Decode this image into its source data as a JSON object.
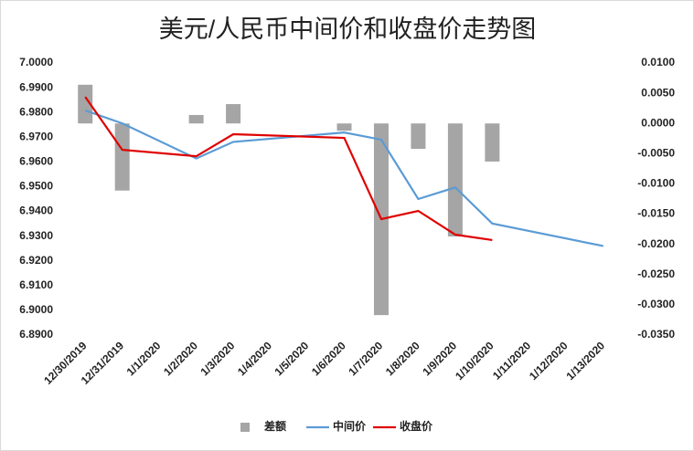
{
  "chart_data": {
    "type": "combo",
    "title": "美元/人民币中间价和收盘价走势图",
    "categories": [
      "12/30/2019",
      "12/31/2019",
      "1/1/2020",
      "1/2/2020",
      "1/3/2020",
      "1/4/2020",
      "1/5/2020",
      "1/6/2020",
      "1/7/2020",
      "1/8/2020",
      "1/9/2020",
      "1/10/2020",
      "1/11/2020",
      "1/12/2020",
      "1/13/2020"
    ],
    "series": [
      {
        "name": "差额",
        "type": "bar",
        "axis": "y2",
        "color": "#a5a5a5",
        "values": [
          0.0064,
          -0.0111,
          null,
          0.0014,
          0.0032,
          null,
          null,
          -0.0012,
          -0.0317,
          -0.0042,
          -0.0187,
          -0.0063,
          null,
          null,
          null
        ]
      },
      {
        "name": "中间价",
        "type": "line",
        "color": "#5b9bd5",
        "values": [
          6.9808,
          6.9756,
          null,
          6.9614,
          6.9681,
          null,
          null,
          6.9719,
          6.969,
          6.945,
          6.9497,
          6.9351,
          null,
          null,
          6.926
        ]
      },
      {
        "name": "收盘价",
        "type": "line",
        "color": "#e00000",
        "values": [
          6.9863,
          6.9649,
          null,
          6.9623,
          6.9712,
          null,
          null,
          6.9697,
          6.9369,
          6.9402,
          6.9306,
          6.9284,
          null,
          null,
          null
        ]
      }
    ],
    "connect_gaps": true,
    "ylim": [
      6.89,
      7.0
    ],
    "yticks": [
      {
        "value": 7.0,
        "label": "7.0000"
      },
      {
        "value": 6.99,
        "label": "6.9900"
      },
      {
        "value": 6.98,
        "label": "6.9800"
      },
      {
        "value": 6.97,
        "label": "6.9700"
      },
      {
        "value": 6.96,
        "label": "6.9600"
      },
      {
        "value": 6.95,
        "label": "6.9500"
      },
      {
        "value": 6.94,
        "label": "6.9400"
      },
      {
        "value": 6.93,
        "label": "6.9300"
      },
      {
        "value": 6.92,
        "label": "6.9200"
      },
      {
        "value": 6.91,
        "label": "6.9100"
      },
      {
        "value": 6.9,
        "label": "6.9000"
      },
      {
        "value": 6.89,
        "label": "6.8900"
      }
    ],
    "y2lim": [
      -0.035,
      0.01
    ],
    "y2ticks": [
      {
        "value": 0.01,
        "label": "0.0100"
      },
      {
        "value": 0.005,
        "label": "0.0050"
      },
      {
        "value": 0,
        "label": "0.0000"
      },
      {
        "value": -0.005,
        "label": "-0.0050"
      },
      {
        "value": -0.01,
        "label": "-0.0100"
      },
      {
        "value": -0.015,
        "label": "-0.0150"
      },
      {
        "value": -0.02,
        "label": "-0.0200"
      },
      {
        "value": -0.025,
        "label": "-0.0250"
      },
      {
        "value": -0.03,
        "label": "-0.0300"
      },
      {
        "value": -0.035,
        "label": "-0.0350"
      }
    ],
    "legend": "bottom"
  }
}
